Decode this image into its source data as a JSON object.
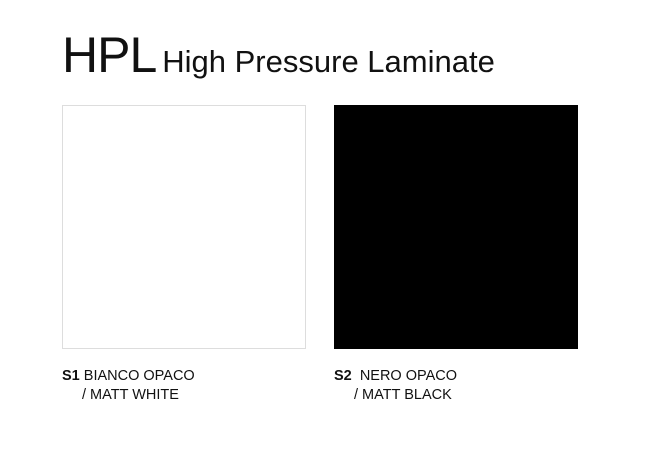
{
  "header": {
    "code": "HPL",
    "subtitle": "High Pressure Laminate"
  },
  "swatches": [
    {
      "code": "S1",
      "name": "BIANCO OPACO",
      "translation": "/ MATT WHITE",
      "color": "#ffffff"
    },
    {
      "code": "S2",
      "name": "NERO OPACO",
      "translation": "/ MATT BLACK",
      "color": "#000000"
    }
  ]
}
